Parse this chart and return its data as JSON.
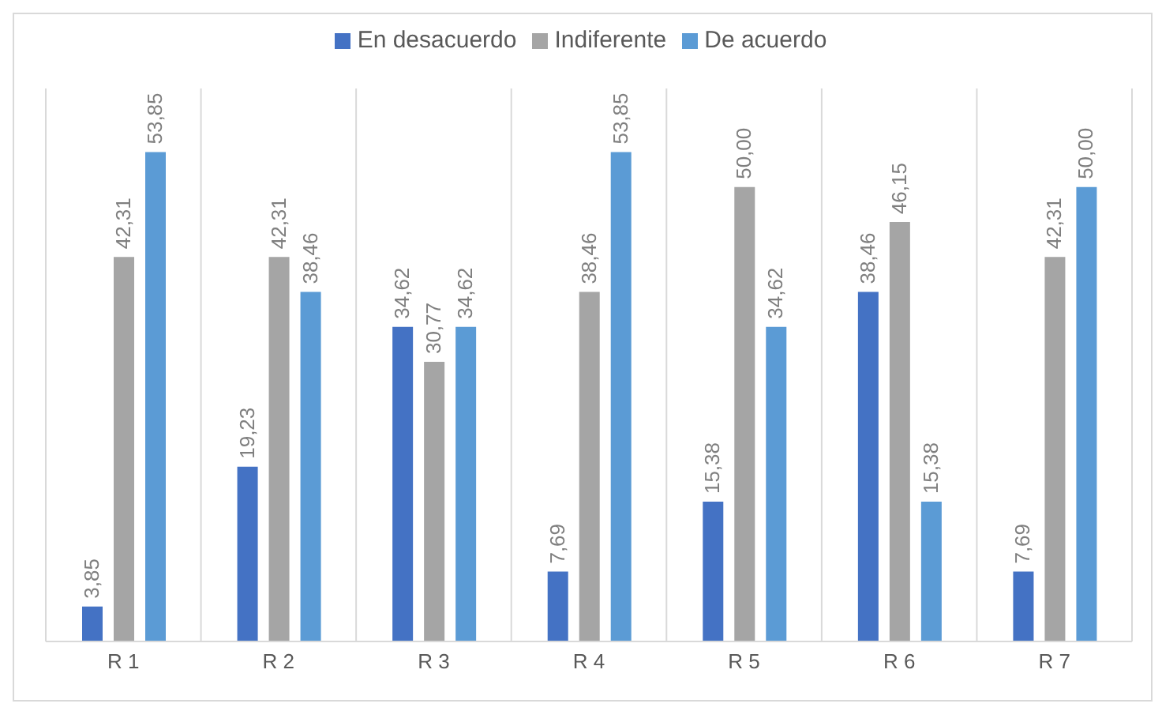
{
  "chart_data": {
    "type": "bar",
    "categories": [
      "R 1",
      "R 2",
      "R 3",
      "R 4",
      "R 5",
      "R 6",
      "R 7"
    ],
    "series": [
      {
        "name": "En desacuerdo",
        "color": "#4472c4",
        "values": [
          3.85,
          19.23,
          34.62,
          7.69,
          15.38,
          38.46,
          7.69
        ],
        "value_labels": [
          "3,85",
          "19,23",
          "34,62",
          "7,69",
          "15,38",
          "38,46",
          "7,69"
        ]
      },
      {
        "name": "Indiferente",
        "color": "#a5a5a5",
        "values": [
          42.31,
          42.31,
          30.77,
          38.46,
          50.0,
          46.15,
          42.31
        ],
        "value_labels": [
          "42,31",
          "42,31",
          "30,77",
          "38,46",
          "50,00",
          "46,15",
          "42,31"
        ]
      },
      {
        "name": "De acuerdo",
        "color": "#5b9bd5",
        "values": [
          53.85,
          38.46,
          34.62,
          53.85,
          34.62,
          15.38,
          50.0
        ],
        "value_labels": [
          "53,85",
          "38,46",
          "34,62",
          "53,85",
          "34,62",
          "15,38",
          "50,00"
        ]
      }
    ],
    "grid": "x",
    "legend": "top"
  }
}
